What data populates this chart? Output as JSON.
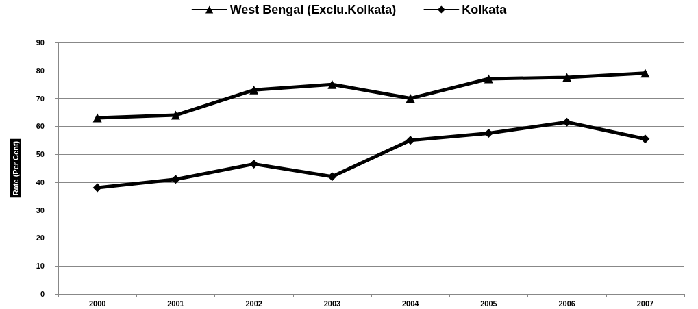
{
  "chart_data": {
    "type": "line",
    "ylabel": "Rate (Per Cent)",
    "categories": [
      "2000",
      "2001",
      "2002",
      "2003",
      "2004",
      "2005",
      "2006",
      "2007"
    ],
    "series": [
      {
        "name": "West Bengal (Exclu.Kolkata)",
        "color": "#000000",
        "marker": "triangle",
        "values": [
          63,
          64,
          73,
          75,
          70,
          77,
          77.5,
          79
        ]
      },
      {
        "name": "Kolkata",
        "color": "#000000",
        "marker": "diamond",
        "values": [
          38,
          41,
          46.5,
          42,
          55,
          57.5,
          61.5,
          55.5
        ]
      }
    ],
    "ylim": [
      0,
      90
    ],
    "yticks": [
      0,
      10,
      20,
      30,
      40,
      50,
      60,
      70,
      80,
      90
    ],
    "grid": "y",
    "legend": "top",
    "line_style": "solid"
  }
}
